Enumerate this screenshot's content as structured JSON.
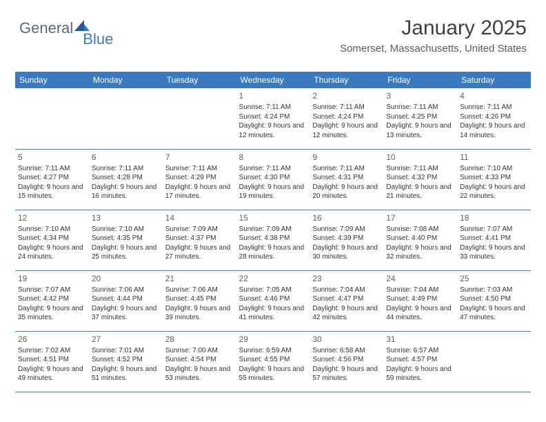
{
  "logo": {
    "text_general": "General",
    "text_blue": "Blue"
  },
  "header": {
    "month_title": "January 2025",
    "location": "Somerset, Massachusetts, United States"
  },
  "colors": {
    "header_bg": "#3a7bbf",
    "header_fg": "#ffffff",
    "row_border": "#3a7bbf",
    "text": "#333333",
    "daynum": "#606060",
    "title": "#404040",
    "location": "#5a5a5a",
    "logo_general": "#5a6a7a",
    "logo_blue": "#3a7bbf"
  },
  "weekdays": [
    "Sunday",
    "Monday",
    "Tuesday",
    "Wednesday",
    "Thursday",
    "Friday",
    "Saturday"
  ],
  "labels": {
    "sunrise": "Sunrise:",
    "sunset": "Sunset:",
    "daylight": "Daylight:"
  },
  "weeks": [
    [
      null,
      null,
      null,
      {
        "n": "1",
        "sr": "7:11 AM",
        "ss": "4:24 PM",
        "dl": "9 hours and 12 minutes."
      },
      {
        "n": "2",
        "sr": "7:11 AM",
        "ss": "4:24 PM",
        "dl": "9 hours and 12 minutes."
      },
      {
        "n": "3",
        "sr": "7:11 AM",
        "ss": "4:25 PM",
        "dl": "9 hours and 13 minutes."
      },
      {
        "n": "4",
        "sr": "7:11 AM",
        "ss": "4:26 PM",
        "dl": "9 hours and 14 minutes."
      }
    ],
    [
      {
        "n": "5",
        "sr": "7:11 AM",
        "ss": "4:27 PM",
        "dl": "9 hours and 15 minutes."
      },
      {
        "n": "6",
        "sr": "7:11 AM",
        "ss": "4:28 PM",
        "dl": "9 hours and 16 minutes."
      },
      {
        "n": "7",
        "sr": "7:11 AM",
        "ss": "4:29 PM",
        "dl": "9 hours and 17 minutes."
      },
      {
        "n": "8",
        "sr": "7:11 AM",
        "ss": "4:30 PM",
        "dl": "9 hours and 19 minutes."
      },
      {
        "n": "9",
        "sr": "7:11 AM",
        "ss": "4:31 PM",
        "dl": "9 hours and 20 minutes."
      },
      {
        "n": "10",
        "sr": "7:11 AM",
        "ss": "4:32 PM",
        "dl": "9 hours and 21 minutes."
      },
      {
        "n": "11",
        "sr": "7:10 AM",
        "ss": "4:33 PM",
        "dl": "9 hours and 22 minutes."
      }
    ],
    [
      {
        "n": "12",
        "sr": "7:10 AM",
        "ss": "4:34 PM",
        "dl": "9 hours and 24 minutes."
      },
      {
        "n": "13",
        "sr": "7:10 AM",
        "ss": "4:35 PM",
        "dl": "9 hours and 25 minutes."
      },
      {
        "n": "14",
        "sr": "7:09 AM",
        "ss": "4:37 PM",
        "dl": "9 hours and 27 minutes."
      },
      {
        "n": "15",
        "sr": "7:09 AM",
        "ss": "4:38 PM",
        "dl": "9 hours and 28 minutes."
      },
      {
        "n": "16",
        "sr": "7:09 AM",
        "ss": "4:39 PM",
        "dl": "9 hours and 30 minutes."
      },
      {
        "n": "17",
        "sr": "7:08 AM",
        "ss": "4:40 PM",
        "dl": "9 hours and 32 minutes."
      },
      {
        "n": "18",
        "sr": "7:07 AM",
        "ss": "4:41 PM",
        "dl": "9 hours and 33 minutes."
      }
    ],
    [
      {
        "n": "19",
        "sr": "7:07 AM",
        "ss": "4:42 PM",
        "dl": "9 hours and 35 minutes."
      },
      {
        "n": "20",
        "sr": "7:06 AM",
        "ss": "4:44 PM",
        "dl": "9 hours and 37 minutes."
      },
      {
        "n": "21",
        "sr": "7:06 AM",
        "ss": "4:45 PM",
        "dl": "9 hours and 39 minutes."
      },
      {
        "n": "22",
        "sr": "7:05 AM",
        "ss": "4:46 PM",
        "dl": "9 hours and 41 minutes."
      },
      {
        "n": "23",
        "sr": "7:04 AM",
        "ss": "4:47 PM",
        "dl": "9 hours and 42 minutes."
      },
      {
        "n": "24",
        "sr": "7:04 AM",
        "ss": "4:49 PM",
        "dl": "9 hours and 44 minutes."
      },
      {
        "n": "25",
        "sr": "7:03 AM",
        "ss": "4:50 PM",
        "dl": "9 hours and 47 minutes."
      }
    ],
    [
      {
        "n": "26",
        "sr": "7:02 AM",
        "ss": "4:51 PM",
        "dl": "9 hours and 49 minutes."
      },
      {
        "n": "27",
        "sr": "7:01 AM",
        "ss": "4:52 PM",
        "dl": "9 hours and 51 minutes."
      },
      {
        "n": "28",
        "sr": "7:00 AM",
        "ss": "4:54 PM",
        "dl": "9 hours and 53 minutes."
      },
      {
        "n": "29",
        "sr": "6:59 AM",
        "ss": "4:55 PM",
        "dl": "9 hours and 55 minutes."
      },
      {
        "n": "30",
        "sr": "6:58 AM",
        "ss": "4:56 PM",
        "dl": "9 hours and 57 minutes."
      },
      {
        "n": "31",
        "sr": "6:57 AM",
        "ss": "4:57 PM",
        "dl": "9 hours and 59 minutes."
      },
      null
    ]
  ]
}
